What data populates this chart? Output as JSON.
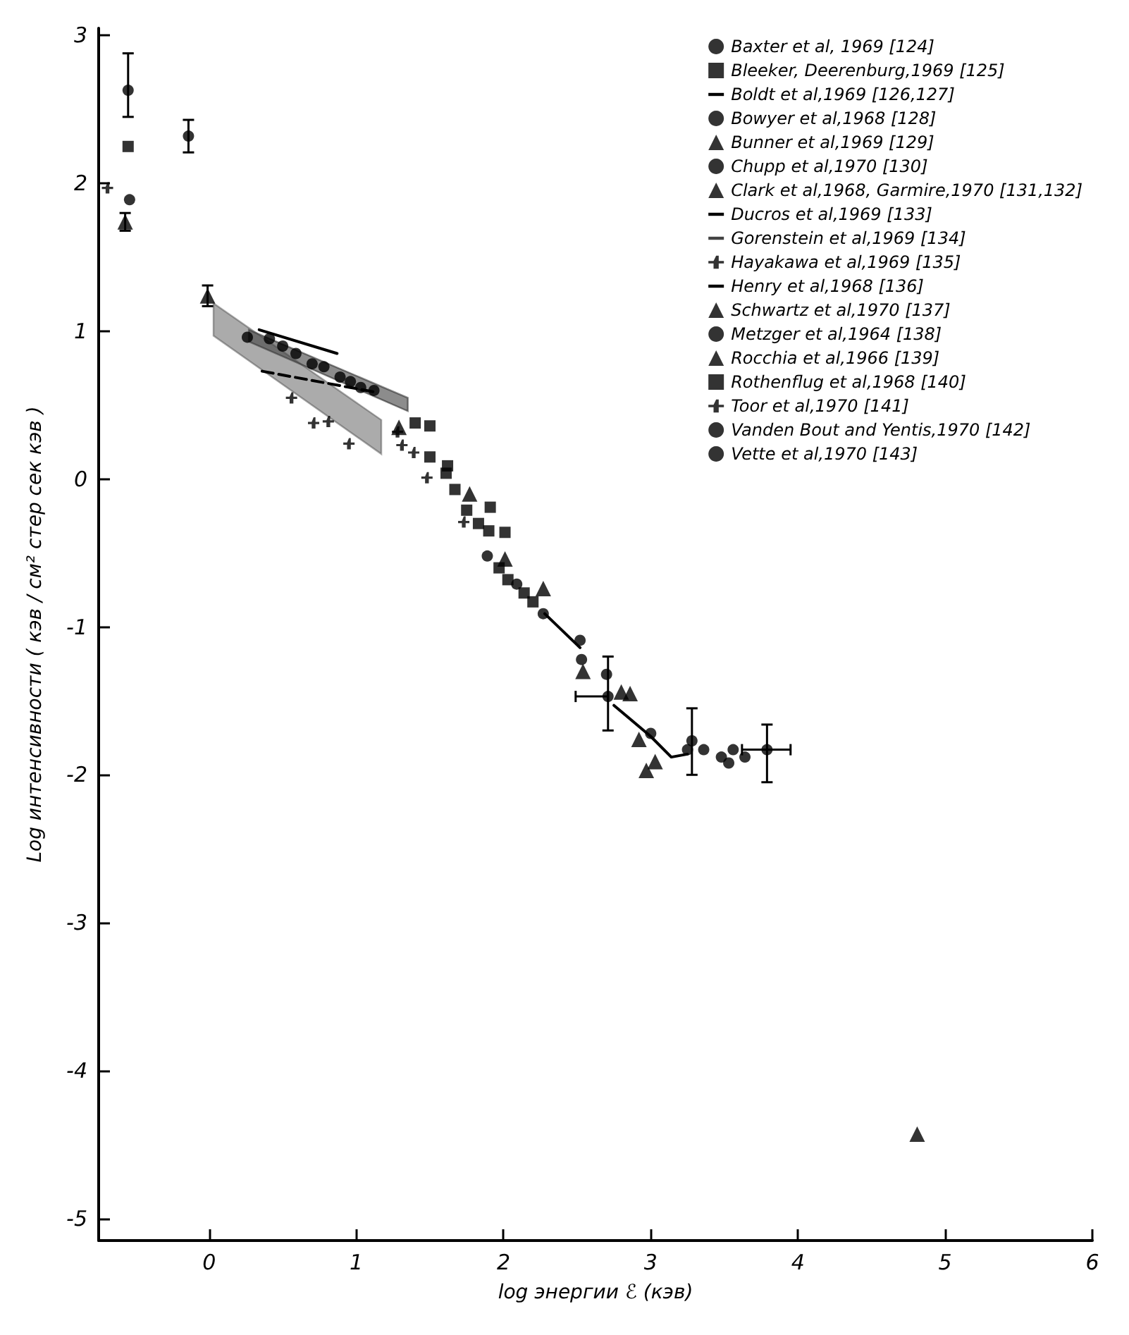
{
  "chart_data": {
    "type": "scatter",
    "xlabel": "log энергии ℰ (кэв)",
    "ylabel": "Log интенсивности ( кэв / см² стер сек кэв )",
    "xlim": [
      -0.75,
      6
    ],
    "ylim": [
      -5.15,
      3.05
    ],
    "xticks": [
      0,
      1,
      2,
      3,
      4,
      5,
      6
    ],
    "yticks": [
      -5,
      -4,
      -3,
      -2,
      -1,
      0,
      1,
      2,
      3
    ],
    "grid": false,
    "legend": "top right",
    "series": [
      {
        "name": "Baxter et al, 1969 [124]",
        "color": "#000000",
        "marker": "circle",
        "x": [
          -0.55,
          -0.14
        ],
        "values": [
          2.63,
          2.32
        ],
        "errors": [
          [
            2.45,
            2.88
          ],
          [
            2.21,
            2.43
          ]
        ]
      },
      {
        "name": "Bleeker, Deerenburg,1969 [125]",
        "color": "#000000",
        "marker": "square",
        "x": [
          -0.55,
          1.5,
          1.61,
          1.75,
          1.83,
          1.9,
          1.97,
          2.03,
          2.14,
          2.2
        ],
        "values": [
          2.25,
          0.15,
          0.04,
          -0.21,
          -0.3,
          -0.35,
          -0.6,
          -0.68,
          -0.77,
          -0.83
        ]
      },
      {
        "name": "Boldt et al,1969 [126,127]",
        "type": "line",
        "color": "#000000",
        "marker": "none",
        "x": [
          0.27,
          1.35
        ],
        "values": [
          null,
          null
        ],
        "lower": [
          0.93,
          0.46
        ],
        "upper": [
          1.01,
          0.55
        ]
      },
      {
        "name": "Bowyer et al,1968 [128]",
        "color": "#000000",
        "marker": "circle",
        "x": [
          -0.54
        ],
        "values": [
          1.89
        ]
      },
      {
        "name": "Bunner et al,1969 [129]",
        "color": "#000000",
        "marker": "triangle",
        "x": [
          -0.57,
          -0.01
        ],
        "values": [
          1.74,
          1.24
        ],
        "errors": [
          0.06,
          0.07
        ]
      },
      {
        "name": "Chupp et al,1970 [130]",
        "color": "#000000",
        "marker": "circle",
        "x": [
          2.52
        ],
        "values": [
          -1.09
        ]
      },
      {
        "name": "Clark et al,1968, Garmire,1970 [131,132]",
        "color": "#000000",
        "marker": "triangle",
        "x": [
          4.81
        ],
        "values": [
          -4.43
        ]
      },
      {
        "name": "Ducros et al,1969 [133]",
        "type": "line",
        "color": "#000000",
        "marker": "none",
        "line_style": "dashed",
        "x": [
          0.36,
          1.12
        ],
        "values": [
          0.73,
          0.59
        ]
      },
      {
        "name": "Gorenstein et al,1969 [134]",
        "type": "line",
        "color": "#444444",
        "marker": "none",
        "x": [
          0.03,
          1.17
        ],
        "values": [
          null,
          null
        ],
        "lower": [
          0.97,
          0.17
        ],
        "upper": [
          1.19,
          0.4
        ]
      },
      {
        "name": "Hayakawa et al,1969 [135]",
        "color": "#000000",
        "marker": "cross",
        "x": [
          -0.69
        ],
        "values": [
          1.97
        ]
      },
      {
        "name": "Henry et al,1968 [136]",
        "type": "line",
        "color": "#000000",
        "marker": "none",
        "x": [
          0.34,
          0.87
        ],
        "values": [
          1.01,
          0.85
        ]
      },
      {
        "name": "Schwartz et al,1970 [137]",
        "color": "#000000",
        "marker": "triangle",
        "x": [
          1.29,
          1.77,
          2.01,
          2.27
        ],
        "values": [
          0.35,
          -0.1,
          -0.54,
          -0.74
        ]
      },
      {
        "name": "Metzger et al,1964 [138]",
        "color": "#000000",
        "marker": "circle",
        "x": [
          0.26,
          0.41,
          0.5,
          0.59,
          0.7,
          0.78,
          0.89,
          0.96,
          1.03,
          1.12
        ],
        "values": [
          0.96,
          0.95,
          0.9,
          0.85,
          0.78,
          0.76,
          0.69,
          0.66,
          0.62,
          0.6
        ]
      },
      {
        "name": "Rocchia et al,1966 [139]",
        "color": "#000000",
        "marker": "triangle",
        "x": [
          2.54,
          2.8,
          2.86,
          2.92,
          2.97,
          3.03
        ],
        "values": [
          -1.3,
          -1.44,
          -1.45,
          -1.76,
          -1.97,
          -1.91
        ]
      },
      {
        "name": "Rothenflug et al,1968 [140]",
        "color": "#000000",
        "marker": "square",
        "x": [
          1.4,
          1.5,
          1.62,
          1.67,
          1.91,
          2.01
        ],
        "values": [
          0.38,
          0.36,
          0.09,
          -0.07,
          -0.19,
          -0.36
        ]
      },
      {
        "name": "Toor et al,1970 [141]",
        "color": "#000000",
        "marker": "cross",
        "x": [
          0.56,
          0.71,
          0.81,
          0.95,
          1.28,
          1.31,
          1.39,
          1.48,
          1.73
        ],
        "values": [
          0.55,
          0.38,
          0.39,
          0.24,
          0.32,
          0.23,
          0.18,
          0.01,
          -0.29
        ]
      },
      {
        "name": "Vanden Bout and Yentis,1970 [142]",
        "color": "#000000",
        "marker": "circle",
        "x": [
          2.53,
          2.7,
          3.25,
          3.36,
          3.48,
          3.56,
          3.64
        ],
        "values": [
          -1.22,
          -1.32,
          -1.83,
          -1.83,
          -1.88,
          -1.83,
          -1.88
        ]
      },
      {
        "name": "Vette et al,1970 [143]",
        "color": "#000000",
        "marker": "circle",
        "x": [
          1.89,
          2.09,
          2.27,
          2.71,
          3.0,
          3.28,
          3.53,
          3.79
        ],
        "values": [
          -0.52,
          -0.71,
          -0.91,
          -1.47,
          -1.72,
          -1.77,
          -1.92,
          -1.83
        ],
        "errors": [
          null,
          null,
          null,
          [
            -1.7,
            -1.2
          ],
          null,
          [
            -2.0,
            -1.55
          ],
          null,
          [
            -2.05,
            -1.66
          ]
        ],
        "xerrors": [
          null,
          null,
          null,
          [
            2.49,
            2.71
          ],
          null,
          null,
          null,
          [
            3.62,
            3.95
          ]
        ]
      },
      {
        "type": "line",
        "color": "#000000",
        "marker": "none",
        "x": [
          2.28,
          2.52,
          2.63,
          2.75,
          3.0,
          3.14,
          3.25
        ],
        "values": [
          -0.91,
          -1.14,
          null,
          -1.53,
          -1.74,
          -1.88,
          -1.86
        ]
      }
    ]
  }
}
